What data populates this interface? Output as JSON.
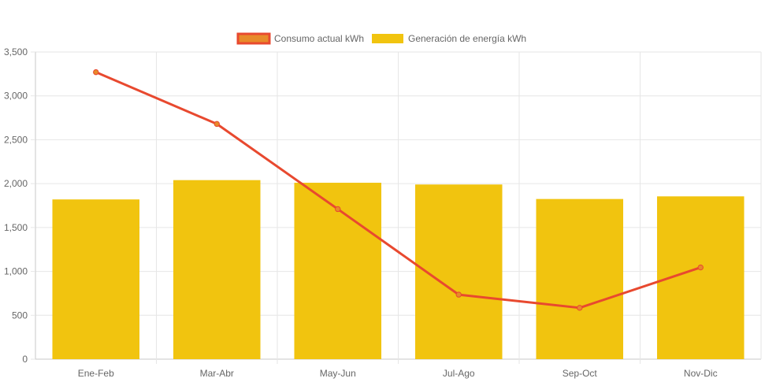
{
  "chart_data": {
    "type": "bar",
    "categories": [
      "Ene-Feb",
      "Mar-Abr",
      "May-Jun",
      "Jul-Ago",
      "Sep-Oct",
      "Nov-Dic"
    ],
    "series": [
      {
        "name": "Consumo actual kWh",
        "type": "line",
        "values": [
          3270,
          2680,
          1710,
          735,
          585,
          1045
        ],
        "color": "#e8492f",
        "legend_fill": "#e88a2a"
      },
      {
        "name": "Generación de energía kWh",
        "type": "bar",
        "values": [
          1820,
          2040,
          2010,
          1990,
          1825,
          1855
        ],
        "color": "#f1c40f"
      }
    ],
    "y_ticks": [
      "0",
      "500",
      "1,000",
      "1,500",
      "2,000",
      "2,500",
      "3,000",
      "3,500"
    ],
    "ylim": [
      0,
      3500
    ],
    "grid": true,
    "legend_position": "top-center",
    "title": "",
    "xlabel": "",
    "ylabel": ""
  }
}
